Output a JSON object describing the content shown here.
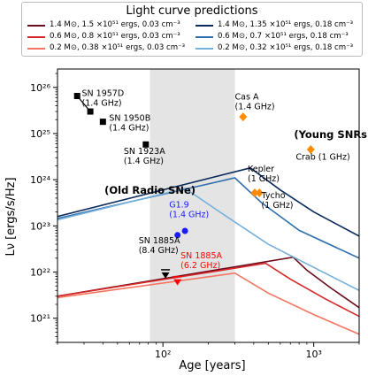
{
  "chart_data": {
    "type": "line",
    "title": "",
    "xlabel": "Age [years]",
    "ylabel": "Lν [ergs/s/Hz]",
    "xscale": "log",
    "yscale": "log",
    "xlim": [
      20,
      2000
    ],
    "ylim": [
      3e+20,
      2.5e+26
    ],
    "x_ticks": [
      {
        "v": 100,
        "label": "10²"
      },
      {
        "v": 1000,
        "label": "10³"
      }
    ],
    "y_ticks": [
      {
        "v": 1e+21,
        "label": "10²¹"
      },
      {
        "v": 1e+22,
        "label": "10²²"
      },
      {
        "v": 1e+23,
        "label": "10²³"
      },
      {
        "v": 1e+24,
        "label": "10²⁴"
      },
      {
        "v": 1e+25,
        "label": "10²⁵"
      },
      {
        "v": 1e+26,
        "label": "10²⁶"
      }
    ],
    "shaded_region": {
      "x": [
        82,
        300
      ],
      "color": "#e4e4e4"
    },
    "legend": {
      "title": "Light curve predictions",
      "position": "top",
      "entries": [
        {
          "name": "1.4 M⊙, 1.5 ×10⁵¹ ergs, 0.03 cm⁻³",
          "color": "#6b0a1a"
        },
        {
          "name": "0.6 M⊙, 0.8 ×10⁵¹ ergs, 0.03 cm⁻³",
          "color": "#d62728"
        },
        {
          "name": "0.2 M⊙, 0.38 ×10⁵¹ ergs, 0.03 cm⁻³",
          "color": "#f47560"
        },
        {
          "name": "1.4 M⊙, 1.35 ×10⁵¹ ergs, 0.18 cm⁻³",
          "color": "#0b2a5c"
        },
        {
          "name": "0.6 M⊙, 0.7 ×10⁵¹ ergs, 0.18 cm⁻³",
          "color": "#2f6fad"
        },
        {
          "name": "0.2 M⊙, 0.32 ×10⁵¹ ergs, 0.18 cm⁻³",
          "color": "#74b0dc"
        }
      ]
    },
    "series": [
      {
        "color": "#6b0a1a",
        "x": [
          20,
          730,
          900,
          1300,
          2000
        ],
        "y": [
          3e+21,
          2.1e+22,
          1.1e+22,
          4.5e+21,
          1.7e+21
        ]
      },
      {
        "color": "#d62728",
        "x": [
          20,
          480,
          700,
          1200,
          2000
        ],
        "y": [
          3e+21,
          1.55e+22,
          7e+21,
          2.6e+21,
          1.1e+21
        ]
      },
      {
        "color": "#f47560",
        "x": [
          20,
          300,
          500,
          1000,
          2000
        ],
        "y": [
          2.8e+21,
          9.5e+21,
          3.5e+21,
          1.2e+21,
          4.5e+20
        ]
      },
      {
        "color": "#0b2a5c",
        "x": [
          20,
          380,
          600,
          1000,
          2000
        ],
        "y": [
          1.6e+23,
          1.8e+24,
          6e+23,
          2e+23,
          6e+22
        ]
      },
      {
        "color": "#2f6fad",
        "x": [
          20,
          300,
          450,
          800,
          2000
        ],
        "y": [
          1.45e+23,
          1.1e+24,
          3.2e+23,
          8e+22,
          2e+22
        ]
      },
      {
        "color": "#74b0dc",
        "x": [
          20,
          140,
          250,
          500,
          2000
        ],
        "y": [
          1.35e+23,
          6.5e+23,
          1.8e+23,
          4e+22,
          4e+21
        ]
      }
    ],
    "points": [
      {
        "group": "old",
        "marker": "square",
        "color": "#000000",
        "x": 27,
        "y": 6.5e+25
      },
      {
        "group": "old",
        "marker": "square",
        "color": "#000000",
        "x": 33,
        "y": 3e+25
      },
      {
        "group": "old",
        "marker": "square",
        "color": "#000000",
        "x": 40,
        "y": 1.8e+25
      },
      {
        "group": "old",
        "marker": "square",
        "color": "#000000",
        "x": 77,
        "y": 5.8e+24
      },
      {
        "group": "young",
        "marker": "diamond",
        "color": "#ff8c00",
        "x": 340,
        "y": 2.3e+25
      },
      {
        "group": "young",
        "marker": "diamond",
        "color": "#ff8c00",
        "x": 406,
        "y": 5.2e+23
      },
      {
        "group": "young",
        "marker": "diamond",
        "color": "#ff8c00",
        "x": 436,
        "y": 5.2e+23
      },
      {
        "group": "young",
        "marker": "diamond",
        "color": "#ff8c00",
        "x": 955,
        "y": 4.5e+24
      },
      {
        "group": "g19",
        "marker": "circle",
        "color": "#1a1aff",
        "x": 125,
        "y": 6.3e+22
      },
      {
        "group": "g19",
        "marker": "circle",
        "color": "#1a1aff",
        "x": 140,
        "y": 7.8e+22
      },
      {
        "group": "1885",
        "marker": "triangle-down",
        "color": "#000000",
        "x": 104,
        "y": 9e+21
      },
      {
        "group": "1885",
        "marker": "triangle-down",
        "color": "#ff0000",
        "x": 125,
        "y": 6.4e+21
      }
    ],
    "annotations": [
      {
        "lines": [
          "SN 1957D",
          "(1.4 GHz)"
        ],
        "x": 29,
        "y": 6.5e+25,
        "color": "#000000",
        "bold": false
      },
      {
        "lines": [
          "SN 1950B",
          "(1.4 GHz)"
        ],
        "x": 44,
        "y": 1.9e+25,
        "color": "#000000",
        "bold": false
      },
      {
        "lines": [
          "SN 1923A",
          "(1.4 GHz)"
        ],
        "x": 55,
        "y": 3.6e+24,
        "color": "#000000",
        "bold": false
      },
      {
        "lines": [
          "Cas A",
          "(1.4 GHz)"
        ],
        "x": 300,
        "y": 5.5e+25,
        "color": "#000000",
        "bold": false
      },
      {
        "lines": [
          "(Young SNRs)"
        ],
        "x": 740,
        "y": 8e+24,
        "color": "#000000",
        "bold": true
      },
      {
        "lines": [
          "Crab (1 GHz)"
        ],
        "x": 760,
        "y": 2.7e+24,
        "color": "#000000",
        "bold": false
      },
      {
        "lines": [
          "(Old Radio SNe)"
        ],
        "x": 41,
        "y": 5e+23,
        "color": "#000000",
        "bold": true
      },
      {
        "lines": [
          "Kepler",
          "(1 GHz)"
        ],
        "x": 365,
        "y": 1.5e+24,
        "color": "#000000",
        "bold": false
      },
      {
        "lines": [
          "Tycho",
          "(1 GHz)"
        ],
        "x": 450,
        "y": 4e+23,
        "color": "#000000",
        "bold": false
      },
      {
        "lines": [
          "G1.9",
          "(1.4 GHz)"
        ],
        "x": 110,
        "y": 2.5e+23,
        "color": "#1a1aff",
        "bold": false
      },
      {
        "lines": [
          "SN 1885A",
          "(8.4 GHz)"
        ],
        "x": 69,
        "y": 4.2e+22,
        "color": "#000000",
        "bold": false
      },
      {
        "lines": [
          "SN 1885A",
          "(6.2 GHz)"
        ],
        "x": 131,
        "y": 2e+22,
        "color": "#ff0000",
        "bold": false
      }
    ]
  }
}
